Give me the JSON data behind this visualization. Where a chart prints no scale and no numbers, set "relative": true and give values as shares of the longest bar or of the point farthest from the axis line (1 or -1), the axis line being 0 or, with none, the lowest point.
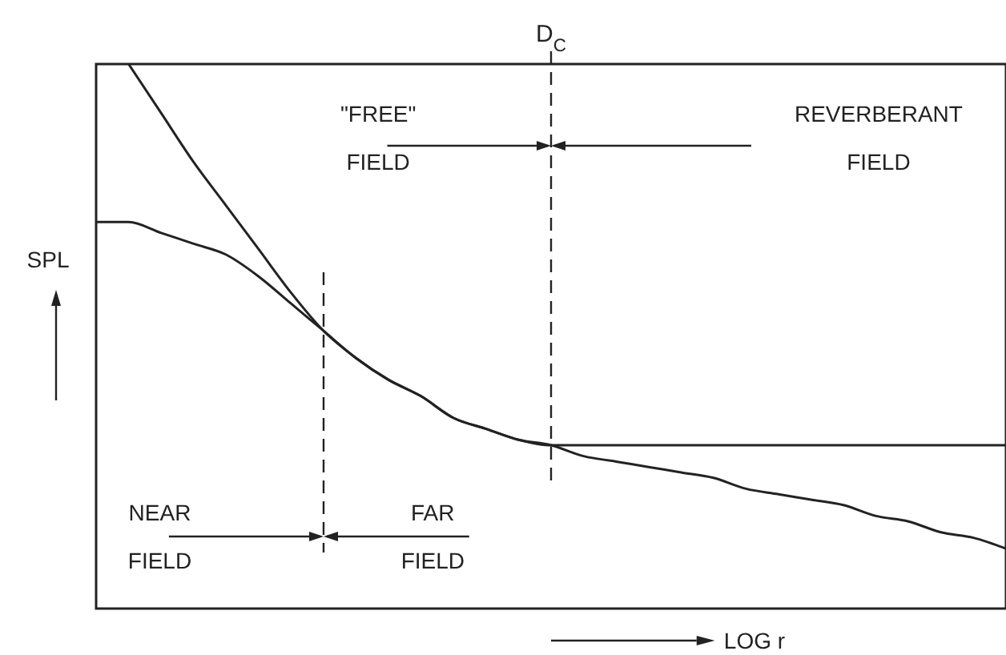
{
  "chart_data": {
    "type": "line",
    "relative": true,
    "xlabel": "LOG r",
    "ylabel": "SPL",
    "categories": [
      null,
      null,
      null,
      null,
      null,
      null,
      null,
      null,
      null,
      null,
      null,
      null,
      null,
      null,
      null,
      null,
      null,
      null,
      null,
      null,
      null,
      null,
      null,
      null,
      null,
      null,
      null,
      null,
      null
    ],
    "series": [
      {
        "color": "#222222",
        "values": [
          0.71,
          0.71,
          0.69,
          0.67,
          0.65,
          0.61,
          0.56,
          0.51,
          0.46,
          0.42,
          0.39,
          0.35,
          0.33,
          0.31,
          0.3,
          0.28,
          0.27,
          0.26,
          0.25,
          0.24,
          0.22,
          0.21,
          0.2,
          0.19,
          0.17,
          0.16,
          0.14,
          0.13,
          0.11
        ]
      },
      {
        "color": "#222222",
        "values": [
          null,
          1.0,
          0.91,
          0.82,
          0.74,
          0.66,
          0.58,
          0.51,
          0.46,
          0.42,
          0.39,
          0.35,
          0.33,
          0.31,
          0.3,
          0.3,
          0.3,
          0.3,
          0.3,
          0.3,
          0.3,
          0.3,
          0.3,
          0.3,
          0.3,
          0.3,
          0.3,
          0.3,
          0.3
        ]
      }
    ],
    "annotations": [
      "D$_{C}$",
      "\"FREE\" FIELD",
      "REVERBERANT FIELD",
      "NEAR FIELD",
      "FAR FIELD"
    ],
    "marker": "none",
    "line_style": "solid"
  }
}
